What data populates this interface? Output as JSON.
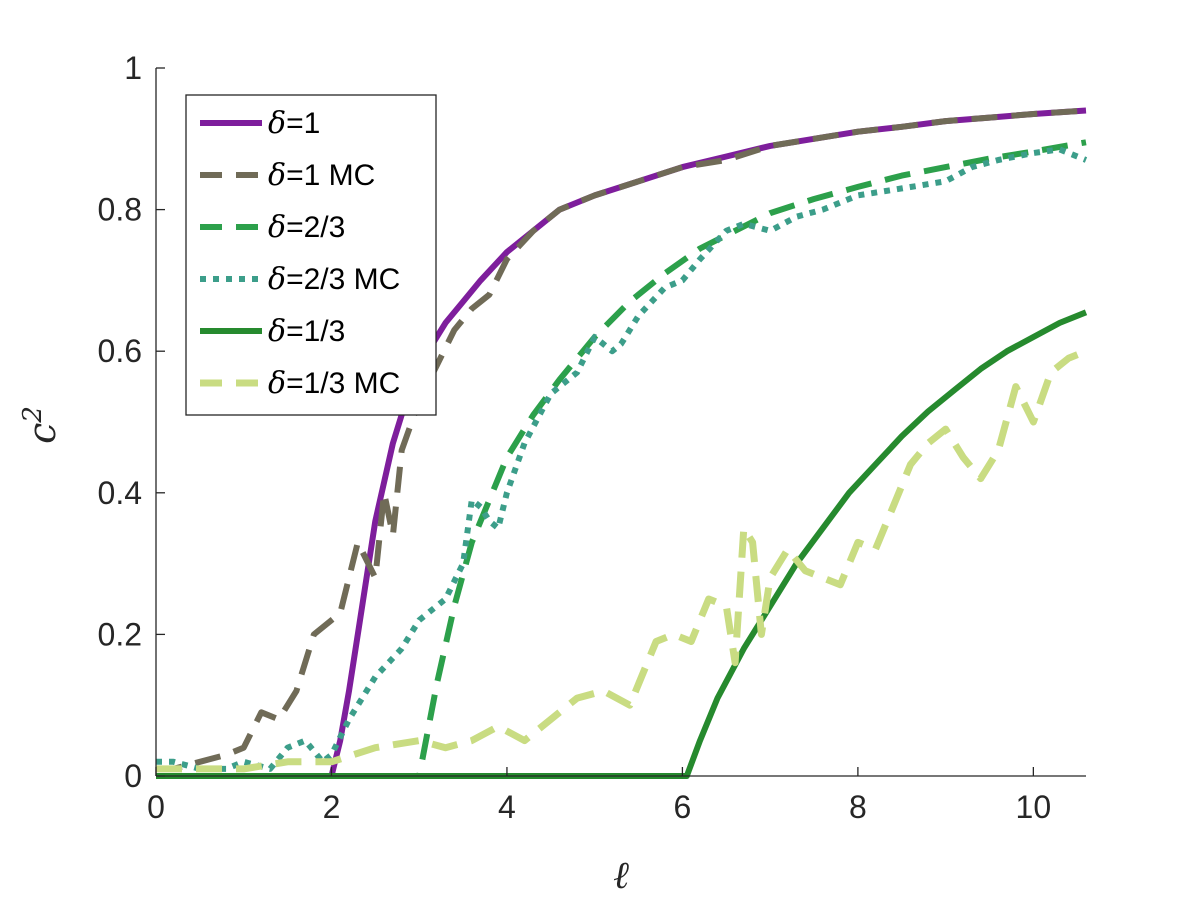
{
  "chart_data": {
    "type": "line",
    "title": "",
    "xlabel": "ℓ",
    "ylabel": "c",
    "ylabel_superscript": "2",
    "xlim": [
      0,
      10.6
    ],
    "ylim": [
      0,
      1
    ],
    "xticks": [
      0,
      2,
      4,
      6,
      8,
      10
    ],
    "yticks": [
      0,
      0.2,
      0.4,
      0.6,
      0.8,
      1
    ],
    "xtick_labels": [
      "0",
      "2",
      "4",
      "6",
      "8",
      "10"
    ],
    "ytick_labels": [
      "0",
      "0.2",
      "0.4",
      "0.6",
      "0.8",
      "1"
    ],
    "legend_position": "top-left",
    "series": [
      {
        "name": "δ=1",
        "symbol": "δ",
        "suffix": "=1",
        "color": "#7E1E9C",
        "style": "solid",
        "width": 6,
        "x": [
          0,
          2.0,
          2.1,
          2.2,
          2.3,
          2.5,
          2.7,
          2.9,
          3.1,
          3.3,
          3.5,
          3.7,
          4.0,
          4.3,
          4.6,
          5.0,
          5.5,
          6.0,
          6.5,
          7.0,
          7.5,
          8.0,
          8.5,
          9.0,
          9.5,
          10.0,
          10.6
        ],
        "y": [
          0,
          0,
          0.05,
          0.12,
          0.2,
          0.36,
          0.47,
          0.55,
          0.6,
          0.64,
          0.67,
          0.7,
          0.74,
          0.77,
          0.8,
          0.82,
          0.84,
          0.86,
          0.875,
          0.89,
          0.9,
          0.91,
          0.917,
          0.925,
          0.93,
          0.935,
          0.94
        ]
      },
      {
        "name": "δ=1 MC",
        "symbol": "δ",
        "suffix": "=1 MC",
        "color": "#706B57",
        "style": "dashed",
        "width": 6,
        "x": [
          0,
          0.2,
          0.5,
          0.8,
          1.0,
          1.2,
          1.4,
          1.6,
          1.8,
          2.0,
          2.1,
          2.3,
          2.5,
          2.6,
          2.7,
          2.8,
          3.0,
          3.2,
          3.4,
          3.6,
          3.8,
          4.0,
          4.3,
          4.6,
          5.0,
          5.5,
          6.0,
          6.5,
          7.0,
          7.5,
          8.0,
          8.5,
          9.0,
          9.5,
          10.0,
          10.6
        ],
        "y": [
          0.01,
          0.01,
          0.02,
          0.03,
          0.04,
          0.09,
          0.08,
          0.12,
          0.2,
          0.22,
          0.23,
          0.33,
          0.28,
          0.4,
          0.34,
          0.46,
          0.53,
          0.58,
          0.63,
          0.66,
          0.68,
          0.73,
          0.77,
          0.8,
          0.82,
          0.84,
          0.86,
          0.87,
          0.89,
          0.9,
          0.91,
          0.917,
          0.925,
          0.93,
          0.935,
          0.94
        ]
      },
      {
        "name": "δ=2/3",
        "symbol": "δ",
        "suffix": "=2/3",
        "color": "#2CA04B",
        "style": "dashed",
        "width": 6,
        "x": [
          0,
          3.0,
          3.2,
          3.4,
          3.6,
          3.8,
          4.0,
          4.3,
          4.6,
          5.0,
          5.4,
          5.8,
          6.2,
          6.6,
          7.0,
          7.5,
          8.0,
          8.5,
          9.0,
          9.5,
          10.0,
          10.6
        ],
        "y": [
          0,
          0,
          0.13,
          0.24,
          0.33,
          0.39,
          0.45,
          0.51,
          0.56,
          0.62,
          0.67,
          0.71,
          0.745,
          0.77,
          0.795,
          0.815,
          0.832,
          0.848,
          0.86,
          0.872,
          0.882,
          0.895
        ]
      },
      {
        "name": "δ=2/3 MC",
        "symbol": "δ",
        "suffix": "=2/3 MC",
        "color": "#3C9E8A",
        "style": "dotted",
        "width": 6,
        "x": [
          0,
          0.2,
          0.5,
          0.8,
          1.0,
          1.3,
          1.5,
          1.7,
          1.9,
          2.0,
          2.2,
          2.5,
          2.8,
          3.0,
          3.3,
          3.5,
          3.6,
          3.7,
          3.8,
          3.9,
          4.0,
          4.2,
          4.5,
          4.8,
          5.0,
          5.2,
          5.3,
          5.5,
          5.8,
          6.0,
          6.2,
          6.5,
          6.7,
          7.0,
          7.3,
          7.6,
          8.0,
          8.5,
          9.0,
          9.3,
          9.6,
          10.0,
          10.3,
          10.6
        ],
        "y": [
          0.02,
          0.02,
          0.01,
          0.01,
          0.02,
          0.01,
          0.04,
          0.05,
          0.02,
          0.03,
          0.08,
          0.14,
          0.18,
          0.22,
          0.25,
          0.3,
          0.39,
          0.38,
          0.36,
          0.35,
          0.4,
          0.47,
          0.54,
          0.57,
          0.62,
          0.6,
          0.61,
          0.65,
          0.69,
          0.7,
          0.73,
          0.77,
          0.78,
          0.77,
          0.79,
          0.8,
          0.82,
          0.83,
          0.84,
          0.86,
          0.87,
          0.88,
          0.885,
          0.87
        ]
      },
      {
        "name": "δ=1/3",
        "symbol": "δ",
        "suffix": "=1/3",
        "color": "#268A2E",
        "style": "solid",
        "width": 6,
        "x": [
          0,
          6.05,
          6.2,
          6.4,
          6.7,
          7.0,
          7.3,
          7.6,
          7.9,
          8.2,
          8.5,
          8.8,
          9.1,
          9.4,
          9.7,
          10.0,
          10.3,
          10.6
        ],
        "y": [
          0,
          0,
          0.05,
          0.11,
          0.18,
          0.24,
          0.3,
          0.35,
          0.4,
          0.44,
          0.48,
          0.515,
          0.545,
          0.575,
          0.6,
          0.62,
          0.64,
          0.655
        ]
      },
      {
        "name": "δ=1/3 MC",
        "symbol": "δ",
        "suffix": "=1/3 MC",
        "color": "#C9DC82",
        "style": "dashed",
        "width": 7,
        "x": [
          0,
          0.5,
          1.0,
          1.5,
          2.0,
          2.5,
          3.0,
          3.3,
          3.6,
          3.9,
          4.2,
          4.5,
          4.8,
          5.1,
          5.4,
          5.7,
          5.9,
          6.1,
          6.3,
          6.5,
          6.6,
          6.7,
          6.8,
          6.9,
          7.0,
          7.2,
          7.4,
          7.6,
          7.8,
          8.0,
          8.2,
          8.4,
          8.6,
          8.8,
          9.0,
          9.2,
          9.4,
          9.6,
          9.8,
          10.0,
          10.2,
          10.4,
          10.6
        ],
        "y": [
          0.01,
          0.01,
          0.01,
          0.02,
          0.02,
          0.04,
          0.05,
          0.04,
          0.05,
          0.07,
          0.05,
          0.08,
          0.11,
          0.12,
          0.1,
          0.19,
          0.2,
          0.19,
          0.25,
          0.24,
          0.16,
          0.35,
          0.33,
          0.2,
          0.28,
          0.32,
          0.29,
          0.28,
          0.27,
          0.33,
          0.32,
          0.38,
          0.44,
          0.47,
          0.49,
          0.45,
          0.42,
          0.46,
          0.55,
          0.5,
          0.57,
          0.59,
          0.6
        ]
      }
    ]
  }
}
